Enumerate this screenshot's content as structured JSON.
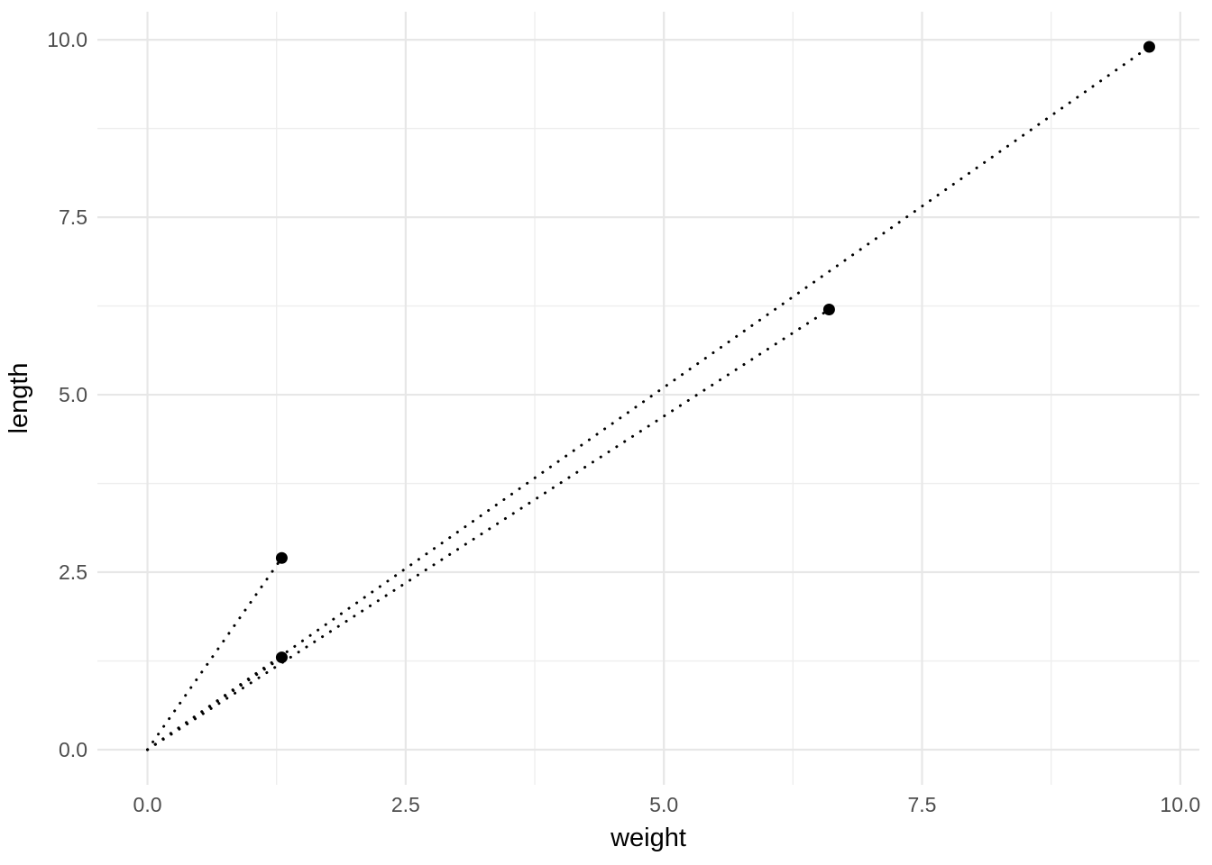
{
  "chart_data": {
    "type": "scatter",
    "title": "",
    "xlabel": "weight",
    "ylabel": "length",
    "xlim": [
      -0.485,
      10.185
    ],
    "ylim": [
      -0.495,
      10.395
    ],
    "grid": true,
    "legend_position": "none",
    "x_ticks": {
      "values": [
        0,
        2.5,
        5,
        7.5,
        10
      ],
      "labels": [
        "0.0",
        "2.5",
        "5.0",
        "7.5",
        "10.0"
      ]
    },
    "y_ticks": {
      "values": [
        0,
        2.5,
        5,
        7.5,
        10
      ],
      "labels": [
        "0.0",
        "2.5",
        "5.0",
        "7.5",
        "10.0"
      ]
    },
    "x_minor": [
      1.25,
      3.75,
      6.25,
      8.75
    ],
    "y_minor": [
      1.25,
      3.75,
      6.25,
      8.75
    ],
    "points": [
      {
        "weight": 1.3,
        "length": 2.7
      },
      {
        "weight": 1.3,
        "length": 1.3
      },
      {
        "weight": 6.6,
        "length": 6.2
      },
      {
        "weight": 9.7,
        "length": 9.9
      }
    ],
    "segments": [
      {
        "x1": 0,
        "y1": 0,
        "x2": 1.3,
        "y2": 2.7
      },
      {
        "x1": 0,
        "y1": 0,
        "x2": 1.3,
        "y2": 1.3
      },
      {
        "x1": 0,
        "y1": 0,
        "x2": 6.6,
        "y2": 6.2
      },
      {
        "x1": 0,
        "y1": 0,
        "x2": 9.7,
        "y2": 9.9
      }
    ],
    "style": {
      "background": "#ffffff",
      "grid_major_color": "#e7e7e7",
      "grid_minor_color": "#eeeeee",
      "point_color": "#000000",
      "segment_color": "#000000",
      "segment_linetype": "dotted",
      "tick_label_color": "#4d4d4d",
      "axis_title_color": "#000000"
    }
  }
}
